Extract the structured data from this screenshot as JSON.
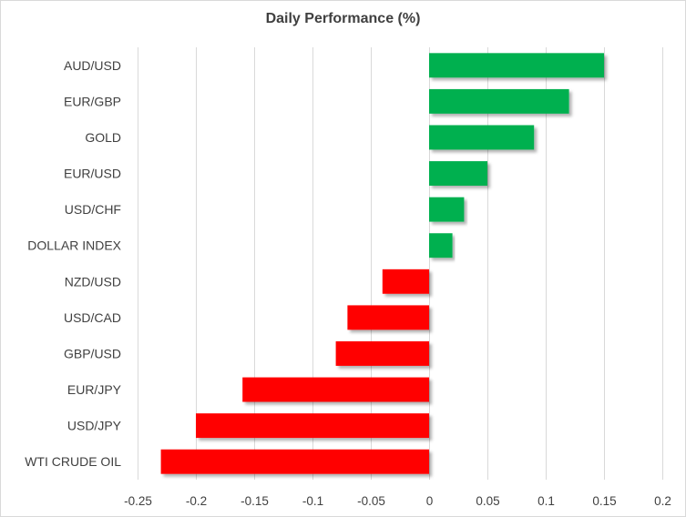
{
  "chart_data": {
    "type": "bar",
    "orientation": "horizontal",
    "title": "Daily Performance (%)",
    "xlabel": "",
    "ylabel": "",
    "categories": [
      "AUD/USD",
      "EUR/GBP",
      "GOLD",
      "EUR/USD",
      "USD/CHF",
      "DOLLAR INDEX",
      "NZD/USD",
      "USD/CAD",
      "GBP/USD",
      "EUR/JPY",
      "USD/JPY",
      "WTI CRUDE OIL"
    ],
    "values": [
      0.15,
      0.12,
      0.09,
      0.05,
      0.03,
      0.02,
      -0.04,
      -0.07,
      -0.08,
      -0.16,
      -0.2,
      -0.23
    ],
    "xlim": [
      -0.25,
      0.2
    ],
    "xticks": [
      -0.25,
      -0.2,
      -0.15,
      -0.1,
      -0.05,
      0,
      0.05,
      0.1,
      0.15,
      0.2
    ],
    "xtick_labels": [
      "-0.25",
      "-0.2",
      "-0.15",
      "-0.1",
      "-0.05",
      "0",
      "0.05",
      "0.1",
      "0.15",
      "0.2"
    ],
    "grid": true,
    "legend": "none",
    "colors": {
      "positive": "#00b050",
      "negative": "#ff0000",
      "grid": "#d9d9d9",
      "text": "#404040"
    }
  }
}
